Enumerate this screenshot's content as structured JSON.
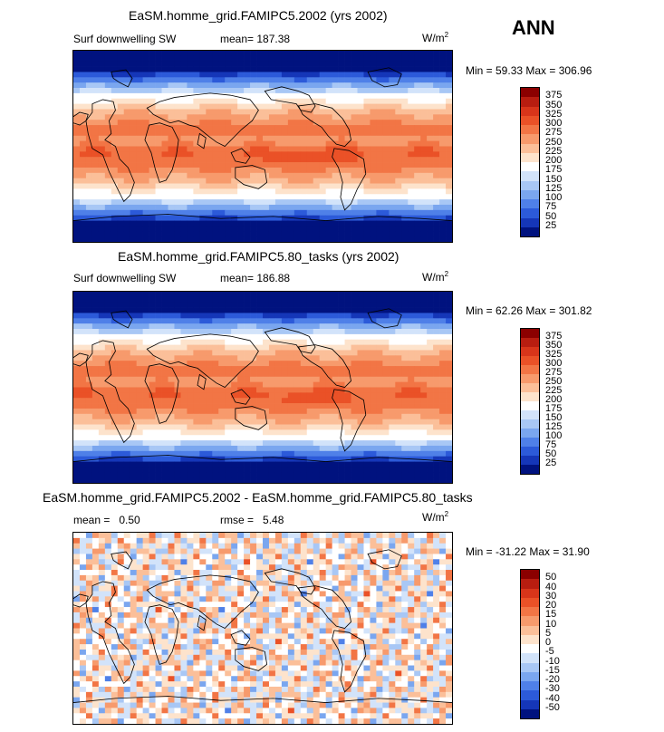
{
  "season_label": "ANN",
  "panels": [
    {
      "title": "EaSM.homme_grid.FAMIPC5.2002 (yrs 2002)",
      "left_label": "Surf downwelling SW",
      "stat_label": "mean=",
      "stat_value": "187.38",
      "units_base": "W/m",
      "units_exp": "2",
      "minmax": "Min =  59.33 Max = 306.96",
      "colorbar": {
        "labels": [
          "375",
          "350",
          "325",
          "300",
          "275",
          "250",
          "225",
          "200",
          "175",
          "150",
          "125",
          "100",
          "75",
          "50",
          "25"
        ],
        "colors": [
          "#8b0000",
          "#b81d10",
          "#d8351a",
          "#ea5127",
          "#f27545",
          "#f79a6c",
          "#fbbf99",
          "#fde3cc",
          "#ffffff",
          "#d2e3fa",
          "#a8c7f5",
          "#7aa6ef",
          "#4f80e8",
          "#2c5ad9",
          "#1536b8",
          "#00127f"
        ]
      }
    },
    {
      "title": "EaSM.homme_grid.FAMIPC5.80_tasks (yrs 2002)",
      "left_label": "Surf downwelling SW",
      "stat_label": "mean=",
      "stat_value": "186.88",
      "units_base": "W/m",
      "units_exp": "2",
      "minmax": "Min =  62.26 Max = 301.82",
      "colorbar": {
        "labels": [
          "375",
          "350",
          "325",
          "300",
          "275",
          "250",
          "225",
          "200",
          "175",
          "150",
          "125",
          "100",
          "75",
          "50",
          "25"
        ],
        "colors": [
          "#8b0000",
          "#b81d10",
          "#d8351a",
          "#ea5127",
          "#f27545",
          "#f79a6c",
          "#fbbf99",
          "#fde3cc",
          "#ffffff",
          "#d2e3fa",
          "#a8c7f5",
          "#7aa6ef",
          "#4f80e8",
          "#2c5ad9",
          "#1536b8",
          "#00127f"
        ]
      }
    },
    {
      "title": "EaSM.homme_grid.FAMIPC5.2002 - EaSM.homme_grid.FAMIPC5.80_tasks",
      "mean_label": "mean =",
      "mean_value": "0.50",
      "rmse_label": "rmse =",
      "rmse_value": "5.48",
      "units_base": "W/m",
      "units_exp": "2",
      "minmax": "Min = -31.22 Max =  31.90",
      "colorbar": {
        "labels": [
          "50",
          "40",
          "30",
          "20",
          "15",
          "10",
          "5",
          "0",
          "-5",
          "-10",
          "-15",
          "-20",
          "-30",
          "-40",
          "-50"
        ],
        "colors": [
          "#8b0000",
          "#b81d10",
          "#d8351a",
          "#ea5127",
          "#f27545",
          "#f79a6c",
          "#fbbf99",
          "#fde3cc",
          "#ffffff",
          "#d2e3fa",
          "#a8c7f5",
          "#7aa6ef",
          "#4f80e8",
          "#2c5ad9",
          "#1536b8",
          "#00127f"
        ]
      }
    }
  ]
}
